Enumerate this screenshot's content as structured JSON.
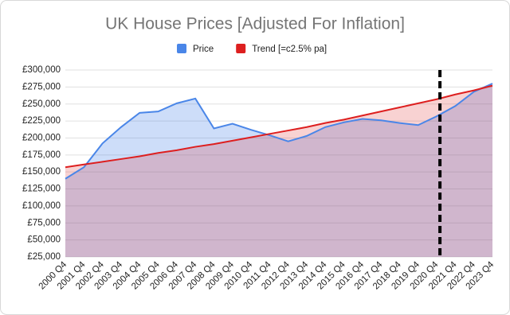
{
  "chart_data": {
    "type": "line",
    "title": "UK House Prices [Adjusted For Inflation]",
    "categories": [
      "2000 Q4",
      "2001 Q4",
      "2002 Q4",
      "2003 Q4",
      "2004 Q4",
      "2005 Q4",
      "2006 Q4",
      "2007 Q4",
      "2008 Q4",
      "2009 Q4",
      "2010 Q4",
      "2011 Q4",
      "2012 Q4",
      "2013 Q4",
      "2014 Q4",
      "2015 Q4",
      "2016 Q4",
      "2017 Q4",
      "2018 Q4",
      "2019 Q4",
      "2020 Q4",
      "2021 Q4",
      "2022 Q4",
      "2023 Q4"
    ],
    "series": [
      {
        "name": "Price",
        "color": "#4a86e8",
        "values": [
          140000,
          157000,
          192000,
          216000,
          237000,
          239000,
          251000,
          258000,
          214000,
          221000,
          212000,
          204000,
          195000,
          203000,
          216000,
          223000,
          228000,
          226000,
          222000,
          219000,
          232000,
          247000,
          268000,
          280000
        ]
      },
      {
        "name": "Trend [=c2.5% pa]",
        "color": "#dd1f1f",
        "values": [
          157000,
          161000,
          165000,
          169000,
          173000,
          178000,
          182000,
          187000,
          191000,
          196000,
          201000,
          206000,
          211000,
          216000,
          222000,
          227000,
          233000,
          239000,
          245000,
          251000,
          257000,
          264000,
          270000,
          277000
        ]
      }
    ],
    "ylim": [
      25000,
      300000
    ],
    "yticks": [
      {
        "value": 25000,
        "label": "£25,000"
      },
      {
        "value": 50000,
        "label": "£50,000"
      },
      {
        "value": 75000,
        "label": "£75,000"
      },
      {
        "value": 100000,
        "label": "£100,000"
      },
      {
        "value": 125000,
        "label": "£125,000"
      },
      {
        "value": 150000,
        "label": "£150,000"
      },
      {
        "value": 175000,
        "label": "£175,000"
      },
      {
        "value": 200000,
        "label": "£200,000"
      },
      {
        "value": 225000,
        "label": "£225,000"
      },
      {
        "value": 250000,
        "label": "£250,000"
      },
      {
        "value": 275000,
        "label": "£275,000"
      },
      {
        "value": 300000,
        "label": "£300,000"
      }
    ],
    "grid": true,
    "area": true,
    "legend": "top"
  }
}
